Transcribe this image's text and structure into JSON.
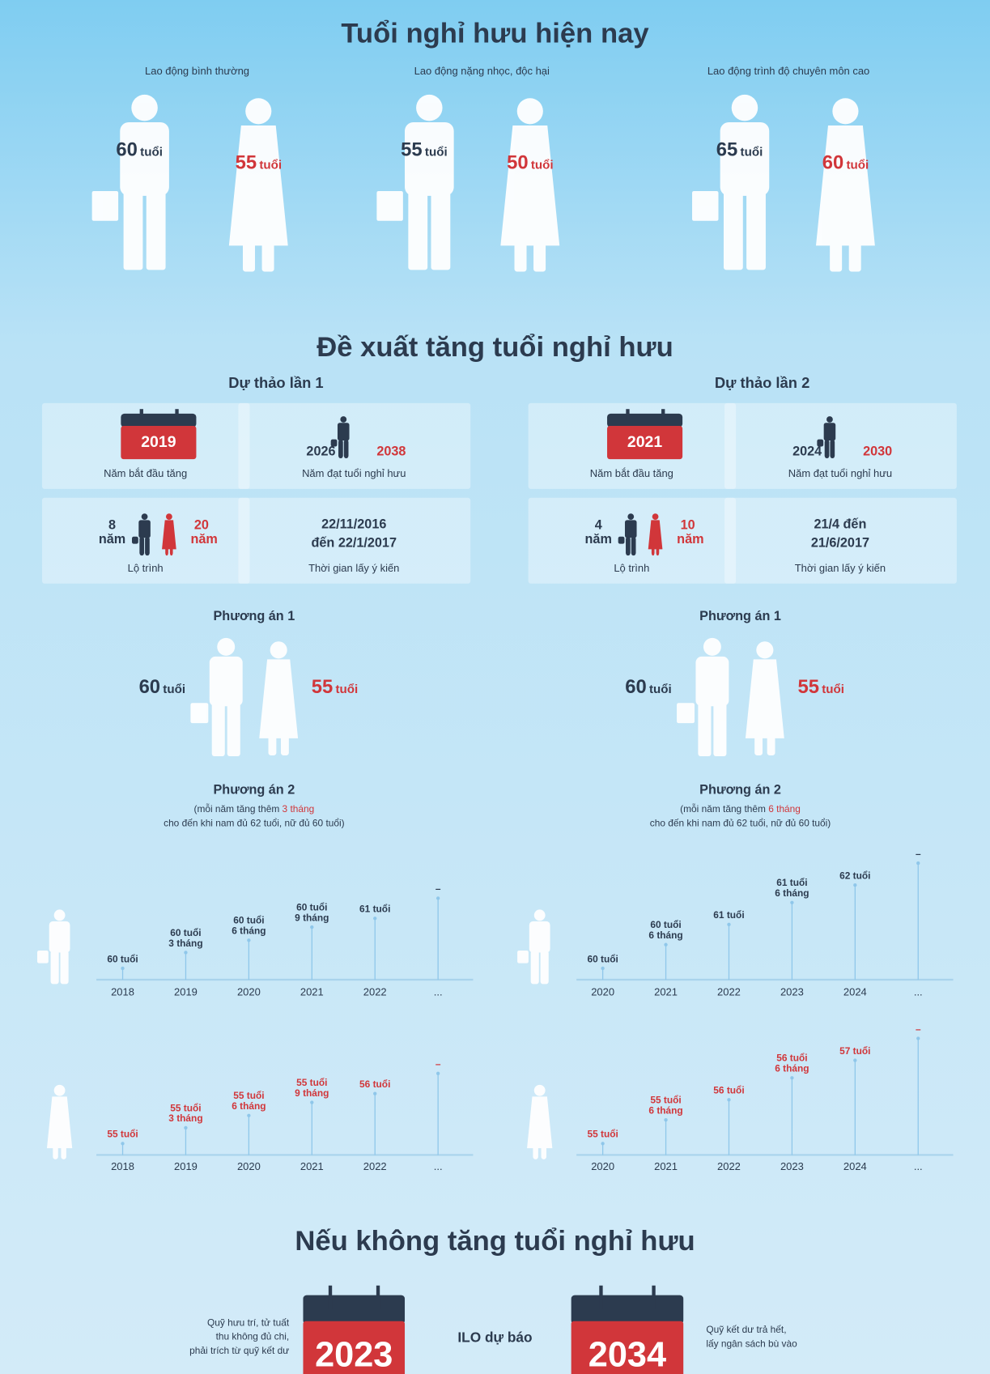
{
  "section1": {
    "title": "Tuổi nghỉ hưu hiện nay",
    "unit": "tuổi",
    "groups": [
      {
        "label": "Lao động bình thường",
        "male": "60",
        "female": "55"
      },
      {
        "label": "Lao động nặng nhọc, độc hại",
        "male": "55",
        "female": "50"
      },
      {
        "label": "Lao động trình độ chuyên môn cao",
        "male": "65",
        "female": "60"
      }
    ]
  },
  "section2": {
    "title": "Đề xuất tăng tuổi nghỉ hưu",
    "drafts": [
      {
        "name": "Dự thảo lần 1",
        "start_year": "2019",
        "start_label": "Năm bắt đầu tăng",
        "male_year": "2026",
        "female_year": "2038",
        "reach_label": "Năm đạt tuổi nghỉ hưu",
        "male_years": "8",
        "female_years": "20",
        "years_unit": "năm",
        "roadmap_label": "Lộ trình",
        "period": [
          "22/11/2016",
          "đến 22/1/2017"
        ],
        "period_label": "Thời gian lấy ý kiến",
        "option1": {
          "name": "Phương án 1",
          "male": "60",
          "female": "55",
          "unit": "tuổi"
        },
        "option2": {
          "name": "Phương án 2",
          "note_pre": "(mỗi năm tăng thêm ",
          "note_highlight": "3 tháng",
          "note_line2": "cho đến khi nam đủ 62 tuổi, nữ đủ 60 tuổi)",
          "years": [
            "2018",
            "2019",
            "2020",
            "2021",
            "2022",
            "..."
          ],
          "male": [
            [
              "60 tuổi"
            ],
            [
              "60 tuổi",
              "3 tháng"
            ],
            [
              "60 tuổi",
              "6 tháng"
            ],
            [
              "60 tuổi",
              "9 tháng"
            ],
            [
              "61 tuổi"
            ],
            [
              "–"
            ]
          ],
          "female": [
            [
              "55 tuổi"
            ],
            [
              "55 tuổi",
              "3 tháng"
            ],
            [
              "55 tuổi",
              "6 tháng"
            ],
            [
              "55 tuổi",
              "9 tháng"
            ],
            [
              "56 tuổi"
            ],
            [
              "–"
            ]
          ]
        }
      },
      {
        "name": "Dự thảo lần 2",
        "start_year": "2021",
        "start_label": "Năm bắt đầu tăng",
        "male_year": "2024",
        "female_year": "2030",
        "reach_label": "Năm đạt tuổi nghỉ hưu",
        "male_years": "4",
        "female_years": "10",
        "years_unit": "năm",
        "roadmap_label": "Lộ trình",
        "period": [
          "21/4 đến",
          "21/6/2017"
        ],
        "period_label": "Thời gian lấy ý kiến",
        "option1": {
          "name": "Phương án 1",
          "male": "60",
          "female": "55",
          "unit": "tuổi"
        },
        "option2": {
          "name": "Phương án 2",
          "note_pre": "(mỗi năm tăng thêm ",
          "note_highlight": "6 tháng",
          "note_line2": "cho đến khi nam đủ 62 tuổi, nữ đủ 60 tuổi)",
          "years": [
            "2020",
            "2021",
            "2022",
            "2023",
            "2024",
            "..."
          ],
          "male": [
            [
              "60 tuổi"
            ],
            [
              "60 tuổi",
              "6 tháng"
            ],
            [
              "61 tuổi"
            ],
            [
              "61 tuổi",
              "6 tháng"
            ],
            [
              "62 tuổi"
            ],
            [
              "–"
            ]
          ],
          "female": [
            [
              "55 tuổi"
            ],
            [
              "55 tuổi",
              "6 tháng"
            ],
            [
              "56 tuổi"
            ],
            [
              "56 tuổi",
              "6 tháng"
            ],
            [
              "57 tuổi"
            ],
            [
              "–"
            ]
          ]
        }
      }
    ]
  },
  "section3": {
    "title": "Nếu không tăng tuổi nghỉ hưu",
    "left_text": [
      "Quỹ hưu trí, tử tuất",
      "thu không đủ chi,",
      "phải trích từ quỹ kết dư"
    ],
    "year1": "2023",
    "middle": "ILO dự báo",
    "year2": "2034",
    "right_text": [
      "Quỹ kết dư trả hết,",
      "lấy ngân sách bù vào"
    ]
  }
}
